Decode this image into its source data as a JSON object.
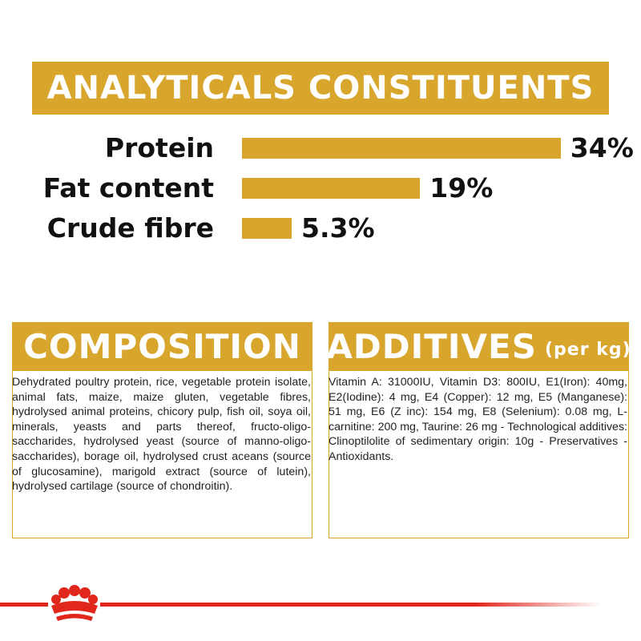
{
  "chart_data": {
    "type": "bar",
    "title": "ANALYTICALS CONSTITUENTS",
    "categories": [
      "Protein",
      "Fat content",
      "Crude fibre"
    ],
    "values": [
      34,
      19,
      5.3
    ],
    "value_labels": [
      "34%",
      "19%",
      "5.3%"
    ],
    "color": "#d8a62c"
  },
  "composition": {
    "title": "COMPOSITION",
    "text": "Dehydrated poultry protein, rice, vegetable protein isolate, animal fats, maize, maize gluten, vegetable fibres, hydrolysed animal proteins, chicory pulp, fish oil, soya oil, minerals, yeasts and parts thereof, fructo-oligo-saccharides, hydrolysed yeast (source of manno-oligo-saccharides), borage oil, hydrolysed crust aceans (source of glucosamine), marigold extract (source of lutein), hydrolysed cartilage (source of chondroitin)."
  },
  "additives": {
    "title": "ADDITIVES",
    "unit": "(per kg)",
    "text": "Vitamin A: 31000IU, Vitamin D3: 800IU, E1(Iron): 40mg, E2(Iodine): 4 mg, E4 (Copper): 12 mg, E5 (Manganese): 51 mg, E6 (Z inc): 154 mg, E8 (Selenium): 0.08 mg, L-carnitine: 200 mg, Taurine: 26 mg - Technological additives: Clinoptilolite of sedimentary origin: 10g - Preservatives - Antioxidants."
  }
}
